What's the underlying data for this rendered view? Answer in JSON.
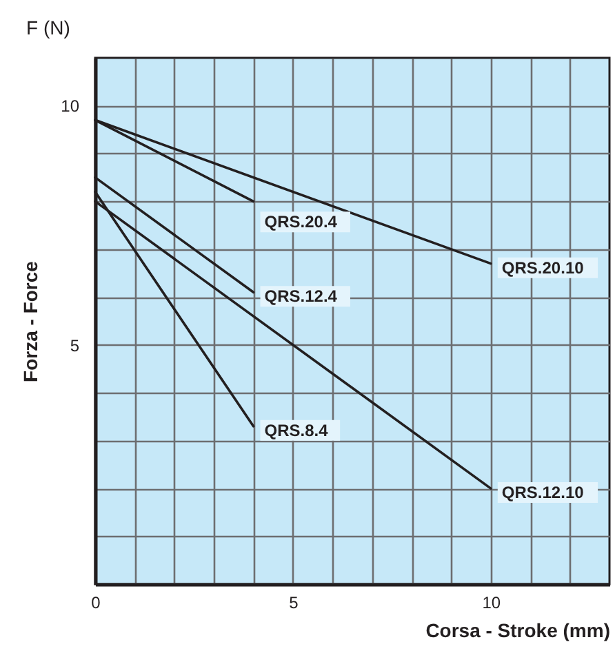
{
  "chart_data": {
    "type": "line",
    "xlabel": "Corsa - Stroke      (mm)",
    "ylabel": "Forza - Force",
    "annotations": [
      "F (N)"
    ],
    "xlim": [
      0,
      13
    ],
    "ylim": [
      0,
      11
    ],
    "xticks": [
      0,
      {
        "value": 1,
        "label": null
      },
      {
        "value": 2,
        "label": null
      },
      {
        "value": 3,
        "label": null
      },
      {
        "value": 4,
        "label": null
      },
      5,
      {
        "value": 6,
        "label": null
      },
      {
        "value": 7,
        "label": null
      },
      {
        "value": 8,
        "label": null
      },
      {
        "value": 9,
        "label": null
      },
      10,
      {
        "value": 11,
        "label": null
      },
      {
        "value": 12,
        "label": null
      }
    ],
    "yticks": [
      {
        "value": 1,
        "label": null
      },
      {
        "value": 2,
        "label": null
      },
      {
        "value": 3,
        "label": null
      },
      {
        "value": 4,
        "label": null
      },
      5,
      {
        "value": 6,
        "label": null
      },
      {
        "value": 7,
        "label": null
      },
      {
        "value": 8,
        "label": null
      },
      {
        "value": 9,
        "label": null
      },
      10
    ],
    "grid": true,
    "legend": false,
    "marker": "none",
    "line_style": "solid",
    "series": [
      {
        "name": "QRS.20.4",
        "color": "#231f20",
        "x": [
          0,
          4
        ],
        "values": [
          9.7,
          8.0
        ]
      },
      {
        "name": "QRS.20.10",
        "color": "#231f20",
        "x": [
          0,
          10
        ],
        "values": [
          9.7,
          6.7
        ]
      },
      {
        "name": "QRS.12.4",
        "color": "#231f20",
        "x": [
          0,
          4
        ],
        "values": [
          8.5,
          6.1
        ]
      },
      {
        "name": "QRS.8.4",
        "color": "#231f20",
        "x": [
          0,
          4
        ],
        "values": [
          8.2,
          3.3
        ]
      },
      {
        "name": "QRS.12.10",
        "color": "#231f20",
        "x": [
          0,
          10
        ],
        "values": [
          8.0,
          2.0
        ]
      }
    ]
  }
}
